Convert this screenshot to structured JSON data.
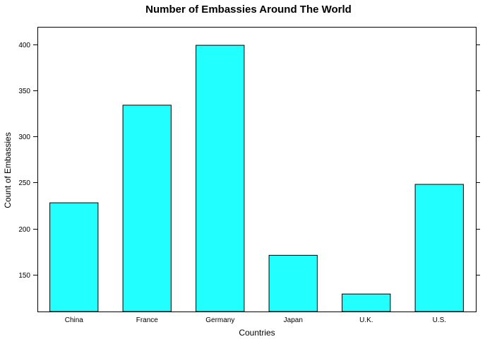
{
  "chart_data": {
    "type": "bar",
    "title": "Number of Embassies Around The World",
    "xlabel": "Countries",
    "ylabel": "Count of Embassies",
    "categories": [
      "China",
      "France",
      "Germany",
      "Japan",
      "U.K.",
      "U.S."
    ],
    "values": [
      228,
      334,
      399,
      171,
      129,
      248
    ],
    "ylim": [
      110,
      419
    ],
    "yticks": [
      150,
      200,
      250,
      300,
      350,
      400
    ],
    "bar_color": "#22ffff",
    "grid": false,
    "legend": "none"
  }
}
